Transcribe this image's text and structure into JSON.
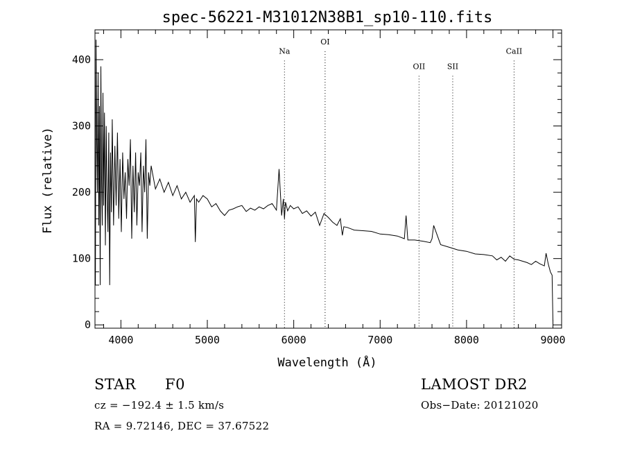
{
  "chart_data": {
    "type": "line",
    "title": "spec-56221-M31012N38B1_sp10-110.fits",
    "xlabel": "Wavelength (Å)",
    "ylabel": "Flux (relative)",
    "xlim": [
      3700,
      9100
    ],
    "ylim": [
      -5,
      445
    ],
    "xticks": [
      4000,
      5000,
      6000,
      7000,
      8000,
      9000
    ],
    "yticks": [
      0,
      100,
      200,
      300,
      400
    ],
    "grid": false,
    "line_color": "#000000",
    "series": [
      {
        "x": [
          3705,
          3712,
          3720,
          3728,
          3736,
          3744,
          3752,
          3760,
          3768,
          3776,
          3784,
          3792,
          3800,
          3810,
          3820,
          3830,
          3840,
          3850,
          3860,
          3870,
          3880,
          3890,
          3900,
          3915,
          3930,
          3945,
          3960,
          3975,
          3990,
          4005,
          4020,
          4035,
          4050,
          4065,
          4080,
          4095,
          4110,
          4125,
          4140,
          4155,
          4170,
          4185,
          4200,
          4215,
          4230,
          4245,
          4260,
          4275,
          4290,
          4305,
          4320,
          4335,
          4350,
          4400,
          4450,
          4500,
          4550,
          4600,
          4650,
          4700,
          4750,
          4800,
          4850,
          4861,
          4875,
          4900,
          4950,
          5000,
          5050,
          5100,
          5150,
          5200,
          5250,
          5300,
          5350,
          5400,
          5450,
          5500,
          5550,
          5600,
          5650,
          5700,
          5750,
          5800,
          5830,
          5860,
          5880,
          5893,
          5905,
          5930,
          5960,
          6000,
          6050,
          6100,
          6150,
          6200,
          6250,
          6300,
          6350,
          6400,
          6450,
          6500,
          6540,
          6563,
          6580,
          6620,
          6700,
          6800,
          6900,
          7000,
          7100,
          7200,
          7280,
          7300,
          7320,
          7400,
          7500,
          7580,
          7600,
          7620,
          7700,
          7800,
          7900,
          8000,
          8100,
          8200,
          8300,
          8350,
          8400,
          8450,
          8500,
          8550,
          8600,
          8650,
          8700,
          8750,
          8800,
          8850,
          8900,
          8920,
          8945,
          8970,
          8990,
          9000
        ],
        "y": [
          60,
          430,
          280,
          200,
          380,
          150,
          330,
          60,
          390,
          220,
          150,
          350,
          180,
          320,
          120,
          300,
          200,
          140,
          290,
          60,
          260,
          170,
          310,
          150,
          270,
          180,
          290,
          160,
          250,
          140,
          260,
          190,
          230,
          160,
          250,
          210,
          280,
          130,
          240,
          170,
          260,
          150,
          230,
          210,
          260,
          140,
          240,
          200,
          280,
          130,
          230,
          210,
          240,
          205,
          220,
          200,
          215,
          195,
          210,
          190,
          200,
          185,
          195,
          125,
          190,
          185,
          195,
          190,
          178,
          183,
          172,
          165,
          173,
          175,
          178,
          180,
          171,
          176,
          173,
          178,
          175,
          180,
          183,
          173,
          235,
          165,
          190,
          160,
          185,
          172,
          180,
          175,
          178,
          168,
          172,
          164,
          170,
          150,
          168,
          162,
          155,
          150,
          160,
          135,
          148,
          147,
          143,
          142,
          141,
          137,
          136,
          134,
          130,
          165,
          128,
          128,
          126,
          124,
          130,
          150,
          121,
          117,
          113,
          111,
          107,
          106,
          104,
          98,
          102,
          96,
          104,
          99,
          98,
          96,
          94,
          91,
          96,
          92,
          89,
          108,
          92,
          80,
          75,
          5
        ]
      }
    ],
    "annotations": [
      {
        "label": "Na",
        "x": 5893,
        "label_y": 409
      },
      {
        "label": "OI",
        "x": 6363,
        "label_y": 423
      },
      {
        "label": "OII",
        "x": 7450,
        "label_y": 386
      },
      {
        "label": "SII",
        "x": 7840,
        "label_y": 386
      },
      {
        "label": "CaII",
        "x": 8550,
        "label_y": 409
      }
    ]
  },
  "info": {
    "class": "STAR",
    "subclass": "F0",
    "survey": "LAMOST DR2",
    "cz": "cz = −192.4 ± 1.5 km/s",
    "obs_date": "Obs−Date: 20121020",
    "radec": "RA =   9.72146, DEC =  37.67522"
  }
}
